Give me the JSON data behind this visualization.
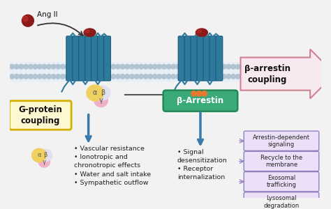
{
  "bg_color": "#f2f2f2",
  "membrane_bg_color": "#e8eef5",
  "membrane_dot_color": "#b0c4d4",
  "receptor_color": "#2e7a9c",
  "receptor_edge_color": "#1a5a7a",
  "ligand_color": "#8b1a1a",
  "g_protein_alpha_color": "#f0d060",
  "g_protein_beta_color": "#e0e0f0",
  "g_protein_gamma_color": "#f0b0c8",
  "arrestin_fill": "#3aaa78",
  "arrestin_edge": "#228855",
  "beta_arrestin_coupling_fill": "#f8e8f0",
  "beta_arrestin_coupling_edge": "#d08090",
  "beta_arrestin_coupling_text": "β-arrestin\ncoupling",
  "g_protein_coupling_fill": "#fef8d0",
  "g_protein_coupling_edge": "#d4b000",
  "g_protein_coupling_text": "G-protein\ncoupling",
  "arrow_color": "#3a7aaa",
  "inhibit_color": "#555555",
  "bullet_color": "#222222",
  "g_protein_bullets": [
    "Vascular resistance",
    "Ionotropic and",
    "  chronotropic effects",
    "Water and salt intake",
    "Sympathetic outflow"
  ],
  "arrestin_bullets": [
    "Signal",
    "  desensitization",
    "Receptor",
    "  internalization"
  ],
  "outcome_boxes": [
    "Arrestin-dependent\nsignaling",
    "Recycle to the\nmembrane",
    "Exosomal\ntrafficking",
    "Lysosomal\ndegradation"
  ],
  "outcome_box_fill": "#ece0f8",
  "outcome_box_edge": "#9080c0",
  "ang_label": "Ang II",
  "ang_dot_color": "#8b1a1a",
  "beta_arrestin_label": "β-Arrestin",
  "orange_dot_color": "#e87830"
}
